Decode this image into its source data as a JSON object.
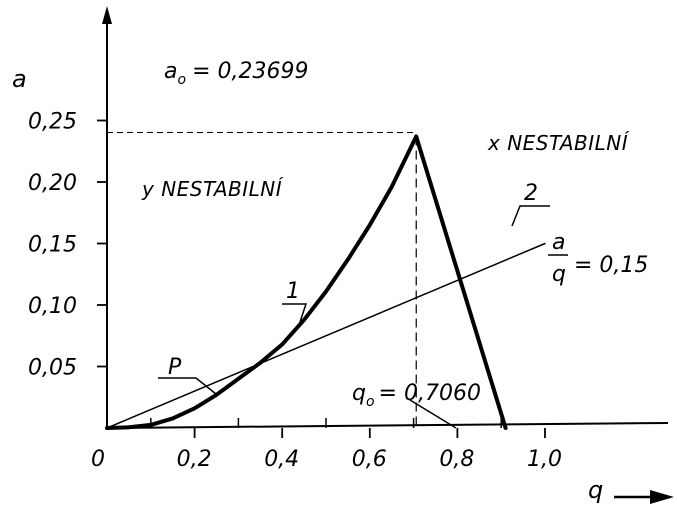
{
  "chart_data": {
    "type": "line",
    "xlabel": "q",
    "ylabel": "a",
    "xlim": [
      0,
      1.12
    ],
    "ylim": [
      0,
      0.265
    ],
    "x_ticks": [
      {
        "value": 0,
        "label": "0"
      },
      {
        "value": 0.2,
        "label": "0,2"
      },
      {
        "value": 0.4,
        "label": "0,4"
      },
      {
        "value": 0.6,
        "label": "0,6"
      },
      {
        "value": 0.8,
        "label": "0,8"
      },
      {
        "value": 1.0,
        "label": "1,0"
      }
    ],
    "y_ticks": [
      {
        "value": 0.05,
        "label": "0,05"
      },
      {
        "value": 0.1,
        "label": "0,10"
      },
      {
        "value": 0.15,
        "label": "0,15"
      },
      {
        "value": 0.2,
        "label": "0,20"
      },
      {
        "value": 0.25,
        "label": "0,25"
      }
    ],
    "minor_x_ticks": [
      0.1,
      0.3,
      0.5,
      0.7,
      0.9
    ],
    "series": [
      {
        "name": "1",
        "style": "thick",
        "x": [
          0,
          0.05,
          0.1,
          0.15,
          0.2,
          0.25,
          0.3,
          0.35,
          0.4,
          0.45,
          0.5,
          0.55,
          0.6,
          0.65,
          0.706
        ],
        "y": [
          0,
          0.0006,
          0.0025,
          0.0078,
          0.016,
          0.027,
          0.04,
          0.053,
          0.068,
          0.088,
          0.111,
          0.137,
          0.165,
          0.196,
          0.23699
        ]
      },
      {
        "name": "2",
        "style": "thick",
        "x": [
          0.706,
          0.91
        ],
        "y": [
          0.23699,
          0
        ]
      },
      {
        "name": "a/q = 0,15",
        "style": "thin",
        "x": [
          0,
          1.0
        ],
        "y": [
          0,
          0.15
        ]
      }
    ],
    "peak": {
      "x": 0.706,
      "y": 0.23699
    },
    "annotations": {
      "a0_label": "a",
      "a0_sub": "o",
      "a0_value": "= 0,23699",
      "q0_label": "q",
      "q0_sub": "o",
      "q0_value": "= 0,7060",
      "ratio_num": "a",
      "ratio_den": "q",
      "ratio_value": "= 0,15",
      "curve1_label": "1",
      "curve2_label": "2",
      "point_label": "P",
      "region_x": "x NESTABILNÍ",
      "region_y": "y NESTABILNÍ"
    }
  }
}
